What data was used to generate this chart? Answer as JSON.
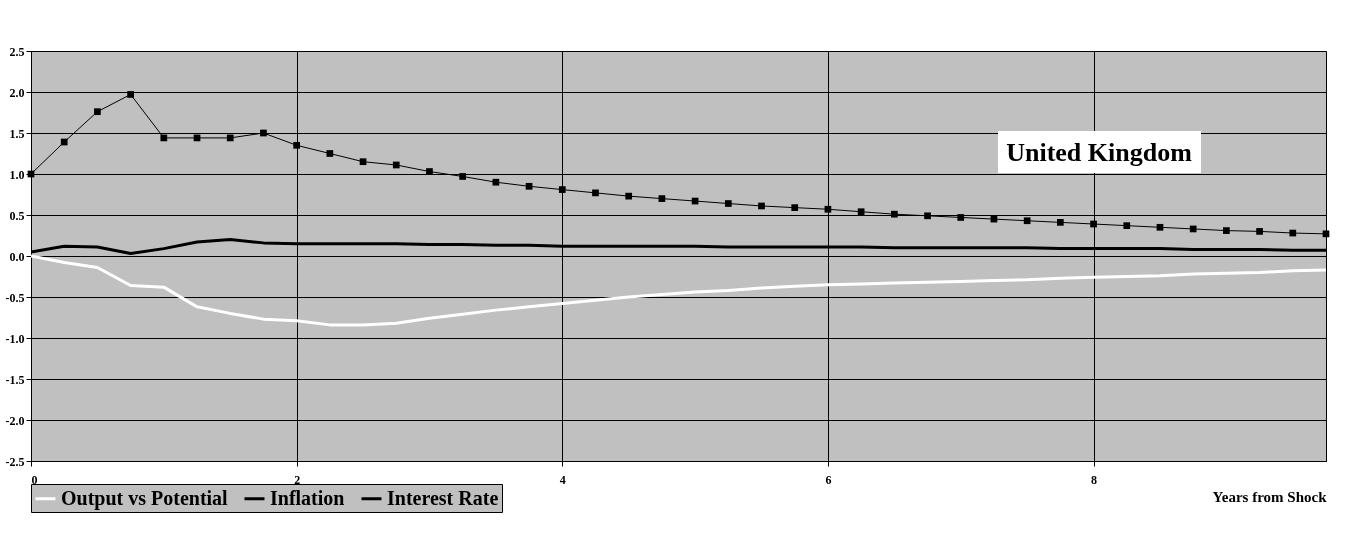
{
  "chart_data": {
    "type": "line",
    "xlabel": "Years from Shock",
    "annotations": [
      "United Kingdom"
    ],
    "x": [
      0,
      0.25,
      0.5,
      0.75,
      1,
      1.25,
      1.5,
      1.75,
      2,
      2.25,
      2.5,
      2.75,
      3,
      3.25,
      3.5,
      3.75,
      4,
      4.25,
      4.5,
      4.75,
      5,
      5.25,
      5.5,
      5.75,
      6,
      6.25,
      6.5,
      6.75,
      7,
      7.25,
      7.5,
      7.75,
      8,
      8.25,
      8.5,
      8.75,
      9,
      9.25,
      9.5,
      9.75
    ],
    "series": [
      {
        "name": "Output vs Potential",
        "color": "#ffffff",
        "marker": "none",
        "values": [
          0,
          -0.08,
          -0.14,
          -0.36,
          -0.38,
          -0.62,
          -0.7,
          -0.77,
          -0.79,
          -0.84,
          -0.84,
          -0.82,
          -0.76,
          -0.71,
          -0.66,
          -0.62,
          -0.58,
          -0.54,
          -0.5,
          -0.47,
          -0.44,
          -0.42,
          -0.39,
          -0.37,
          -0.35,
          -0.34,
          -0.33,
          -0.32,
          -0.31,
          -0.3,
          -0.29,
          -0.27,
          -0.26,
          -0.25,
          -0.24,
          -0.22,
          -0.21,
          -0.2,
          -0.18,
          -0.17
        ]
      },
      {
        "name": "Inflation",
        "color": "#000000",
        "marker": "square",
        "values": [
          1.0,
          1.39,
          1.76,
          1.97,
          1.44,
          1.44,
          1.44,
          1.5,
          1.35,
          1.25,
          1.15,
          1.11,
          1.03,
          0.97,
          0.9,
          0.85,
          0.81,
          0.77,
          0.73,
          0.7,
          0.67,
          0.64,
          0.61,
          0.59,
          0.57,
          0.54,
          0.51,
          0.49,
          0.47,
          0.45,
          0.43,
          0.41,
          0.39,
          0.37,
          0.35,
          0.33,
          0.31,
          0.3,
          0.28,
          0.27
        ]
      },
      {
        "name": "Interest Rate",
        "color": "#000000",
        "marker": "none",
        "values": [
          0.05,
          0.12,
          0.11,
          0.03,
          0.09,
          0.17,
          0.2,
          0.16,
          0.15,
          0.15,
          0.15,
          0.15,
          0.14,
          0.14,
          0.13,
          0.13,
          0.12,
          0.12,
          0.12,
          0.12,
          0.12,
          0.11,
          0.11,
          0.11,
          0.11,
          0.11,
          0.1,
          0.1,
          0.1,
          0.1,
          0.1,
          0.09,
          0.09,
          0.09,
          0.09,
          0.08,
          0.08,
          0.08,
          0.07,
          0.07
        ]
      }
    ],
    "xlim": [
      0,
      9.75
    ],
    "xticks": [
      0,
      2,
      4,
      6,
      8
    ],
    "ylim": [
      -2.5,
      2.5
    ],
    "yticks": [
      {
        "value": -2.5,
        "label": "-2.5"
      },
      {
        "value": -2,
        "label": "-2.0"
      },
      {
        "value": -1.5,
        "label": "-1.5"
      },
      {
        "value": -1,
        "label": "-1.0"
      },
      {
        "value": -0.5,
        "label": "-0.5"
      },
      {
        "value": 0,
        "label": "0.0"
      },
      {
        "value": 0.5,
        "label": "0.5"
      },
      {
        "value": 1,
        "label": "1.0"
      },
      {
        "value": 1.5,
        "label": "1.5"
      },
      {
        "value": 2,
        "label": "2.0"
      },
      {
        "value": 2.5,
        "label": "2.5"
      }
    ],
    "grid": true,
    "legend": "bottom"
  }
}
